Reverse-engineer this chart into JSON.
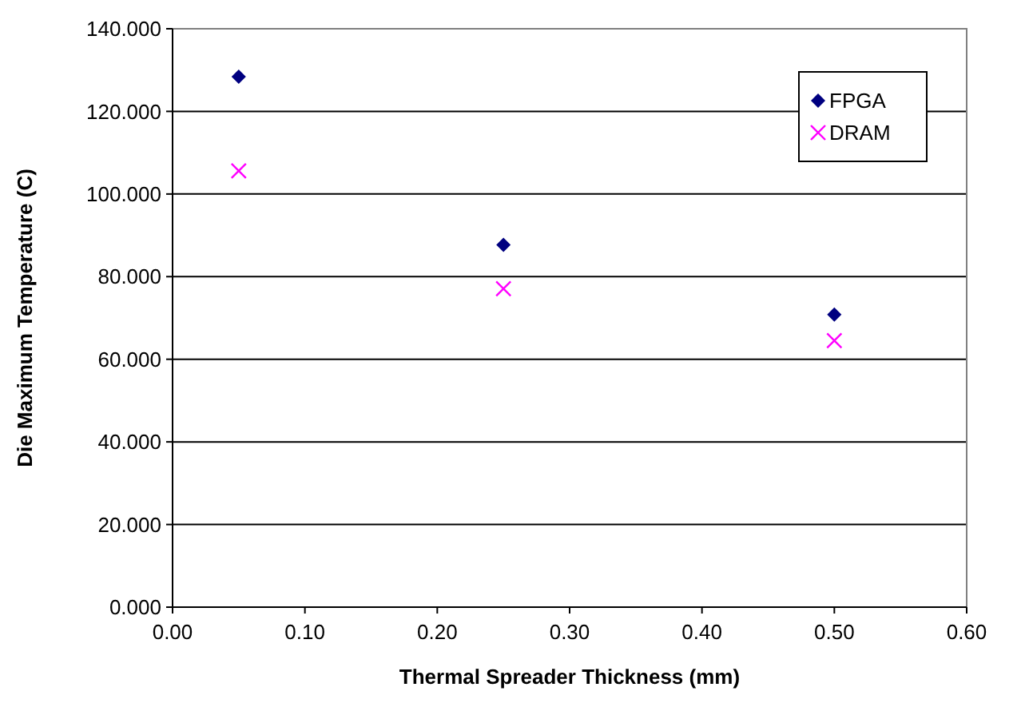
{
  "chart_data": {
    "type": "scatter",
    "xlabel": "Thermal Spreader Thickness (mm)",
    "ylabel": "Die Maximum Temperature (C)",
    "x": [
      0.05,
      0.25,
      0.5
    ],
    "series": [
      {
        "name": "FPGA",
        "color": "#000080",
        "marker": "diamond",
        "values": [
          128.4,
          87.7,
          70.8
        ]
      },
      {
        "name": "DRAM",
        "color": "#ff00ff",
        "marker": "cross",
        "values": [
          105.6,
          77.1,
          64.5
        ]
      }
    ],
    "xlim": [
      0,
      0.6
    ],
    "xticks": [
      {
        "value": 0,
        "label": "0.00"
      },
      {
        "value": 0.1,
        "label": "0.10"
      },
      {
        "value": 0.2,
        "label": "0.20"
      },
      {
        "value": 0.3,
        "label": "0.30"
      },
      {
        "value": 0.4,
        "label": "0.40"
      },
      {
        "value": 0.5,
        "label": "0.50"
      },
      {
        "value": 0.6,
        "label": "0.60"
      }
    ],
    "ylim": [
      0,
      140
    ],
    "yticks": [
      {
        "value": 0,
        "label": "0.000"
      },
      {
        "value": 20,
        "label": "20.000"
      },
      {
        "value": 40,
        "label": "40.000"
      },
      {
        "value": 60,
        "label": "60.000"
      },
      {
        "value": 80,
        "label": "80.000"
      },
      {
        "value": 100,
        "label": "100.000"
      },
      {
        "value": 120,
        "label": "120.000"
      },
      {
        "value": 140,
        "label": "140.000"
      }
    ],
    "grid": "y",
    "legend": "top right"
  }
}
